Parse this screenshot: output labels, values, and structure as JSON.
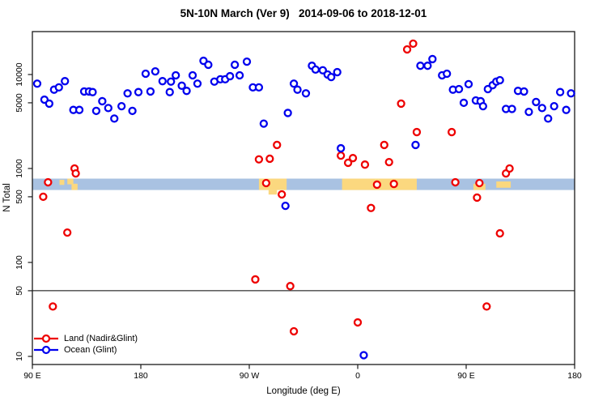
{
  "title": "5N-10N March (Ver 9)   2014-09-06 to 2018-12-01",
  "legend": {
    "items": [
      {
        "label": "Land (Nadir&Glint)",
        "color": "#ee0000"
      },
      {
        "label": "Ocean (Glint)",
        "color": "#0000ee"
      }
    ]
  },
  "chart_data": {
    "type": "scatter",
    "title": "5N-10N March (Ver 9)   2014-09-06 to 2018-12-01",
    "xlabel": "Longitude (deg E)",
    "ylabel": "N Total",
    "x_axis": {
      "note": "longitude wraps eastward: 90E -> 180 -> 90W -> 0 -> 90E -> 180; internal coords run 90..540",
      "range": [
        90,
        540
      ],
      "ticks": [
        {
          "lon": 90,
          "label": "90 E"
        },
        {
          "lon": 180,
          "label": "180"
        },
        {
          "lon": 270,
          "label": "90 W"
        },
        {
          "lon": 360,
          "label": "0"
        },
        {
          "lon": 450,
          "label": "90 E"
        },
        {
          "lon": 540,
          "label": "180"
        }
      ]
    },
    "y_axis": {
      "scale": "log",
      "range": [
        8.2,
        28600
      ],
      "ticks": [
        10,
        50,
        100,
        500,
        1000,
        5000,
        10000
      ]
    },
    "reference_line_y": 50,
    "grid": false,
    "legend_position": "bottom-left-inside",
    "geo_band": {
      "description": "land/ocean strip along longitude",
      "value_range": [
        590,
        780
      ],
      "ocean_color": "#a9c2e2",
      "land_color": "#fbd87f",
      "land_patches": [
        {
          "lon0": 112.5,
          "lon1": 116.5,
          "f0": 0.1,
          "f1": 0.55
        },
        {
          "lon0": 119.0,
          "lon1": 124.0,
          "f0": 0.0,
          "f1": 0.5
        },
        {
          "lon0": 122.5,
          "lon1": 127.5,
          "f0": 0.45,
          "f1": 1.0
        },
        {
          "lon0": 278.0,
          "lon1": 301.0,
          "f0": 0.0,
          "f1": 1.0
        },
        {
          "lon0": 286.0,
          "lon1": 293.0,
          "f0": 1.0,
          "f1": 1.4
        },
        {
          "lon0": 347.0,
          "lon1": 409.0,
          "f0": 0.0,
          "f1": 1.0
        },
        {
          "lon0": 456.0,
          "lon1": 466.0,
          "f0": 0.45,
          "f1": 1.0
        },
        {
          "lon0": 475.0,
          "lon1": 487.0,
          "f0": 0.25,
          "f1": 0.8
        }
      ]
    },
    "series": [
      {
        "name": "Land (Nadir&Glint)",
        "color": "#ee0000",
        "marker": "open-circle",
        "points": [
          [
            99,
            500
          ],
          [
            103,
            713
          ],
          [
            107,
            34
          ],
          [
            119,
            208
          ],
          [
            125,
            1000
          ],
          [
            126,
            885
          ],
          [
            275,
            66
          ],
          [
            278,
            1250
          ],
          [
            284,
            700
          ],
          [
            287,
            1270
          ],
          [
            293,
            1780
          ],
          [
            297,
            530
          ],
          [
            304,
            56
          ],
          [
            307,
            18.5
          ],
          [
            346,
            1370
          ],
          [
            352,
            1150
          ],
          [
            356,
            1290
          ],
          [
            360,
            23
          ],
          [
            366,
            1100
          ],
          [
            371,
            380
          ],
          [
            376,
            673
          ],
          [
            382,
            1780
          ],
          [
            386,
            1170
          ],
          [
            390,
            685
          ],
          [
            396,
            4900
          ],
          [
            401,
            18500
          ],
          [
            406,
            21300
          ],
          [
            409,
            2440
          ],
          [
            438,
            2440
          ],
          [
            441,
            713
          ],
          [
            459,
            490
          ],
          [
            461,
            700
          ],
          [
            467,
            34
          ],
          [
            478,
            204
          ],
          [
            483,
            885
          ],
          [
            486,
            1000
          ]
        ]
      },
      {
        "name": "Ocean (Glint)",
        "color": "#0000ee",
        "marker": "open-circle",
        "points": [
          [
            94,
            8000
          ],
          [
            100,
            5400
          ],
          [
            104,
            4900
          ],
          [
            108,
            6900
          ],
          [
            112,
            7300
          ],
          [
            117,
            8500
          ],
          [
            124,
            4200
          ],
          [
            129,
            4200
          ],
          [
            133,
            6600
          ],
          [
            137,
            6600
          ],
          [
            140,
            6500
          ],
          [
            143,
            4100
          ],
          [
            148,
            5200
          ],
          [
            153,
            4400
          ],
          [
            158,
            3400
          ],
          [
            164,
            4600
          ],
          [
            169,
            6300
          ],
          [
            173,
            4100
          ],
          [
            178,
            6500
          ],
          [
            184,
            10200
          ],
          [
            188,
            6600
          ],
          [
            192,
            10800
          ],
          [
            198,
            8500
          ],
          [
            204,
            6500
          ],
          [
            205,
            8400
          ],
          [
            209,
            9800
          ],
          [
            214,
            7600
          ],
          [
            218,
            6700
          ],
          [
            223,
            9800
          ],
          [
            227,
            8000
          ],
          [
            232,
            14000
          ],
          [
            236,
            12700
          ],
          [
            241,
            8400
          ],
          [
            246,
            8900
          ],
          [
            250,
            8900
          ],
          [
            254,
            9600
          ],
          [
            258,
            12700
          ],
          [
            262,
            9800
          ],
          [
            268,
            13700
          ],
          [
            273,
            7300
          ],
          [
            278,
            7300
          ],
          [
            282,
            3000
          ],
          [
            300,
            400
          ],
          [
            302,
            3900
          ],
          [
            307,
            8000
          ],
          [
            310,
            6900
          ],
          [
            317,
            6300
          ],
          [
            322,
            12400
          ],
          [
            325,
            11300
          ],
          [
            331,
            11100
          ],
          [
            335,
            10000
          ],
          [
            338,
            9400
          ],
          [
            343,
            10600
          ],
          [
            346,
            1640
          ],
          [
            365,
            10.3
          ],
          [
            408,
            1780
          ],
          [
            412,
            12400
          ],
          [
            418,
            12400
          ],
          [
            422,
            14600
          ],
          [
            430,
            9800
          ],
          [
            434,
            10200
          ],
          [
            439,
            6900
          ],
          [
            444,
            7000
          ],
          [
            448,
            5000
          ],
          [
            452,
            7900
          ],
          [
            458,
            5300
          ],
          [
            462,
            5200
          ],
          [
            464,
            4600
          ],
          [
            468,
            7000
          ],
          [
            472,
            7700
          ],
          [
            475,
            8400
          ],
          [
            478,
            8700
          ],
          [
            483,
            4300
          ],
          [
            488,
            4300
          ],
          [
            493,
            6700
          ],
          [
            498,
            6600
          ],
          [
            502,
            4000
          ],
          [
            508,
            5100
          ],
          [
            513,
            4400
          ],
          [
            518,
            3400
          ],
          [
            523,
            4600
          ],
          [
            528,
            6500
          ],
          [
            533,
            4200
          ],
          [
            537,
            6300
          ]
        ]
      }
    ]
  }
}
